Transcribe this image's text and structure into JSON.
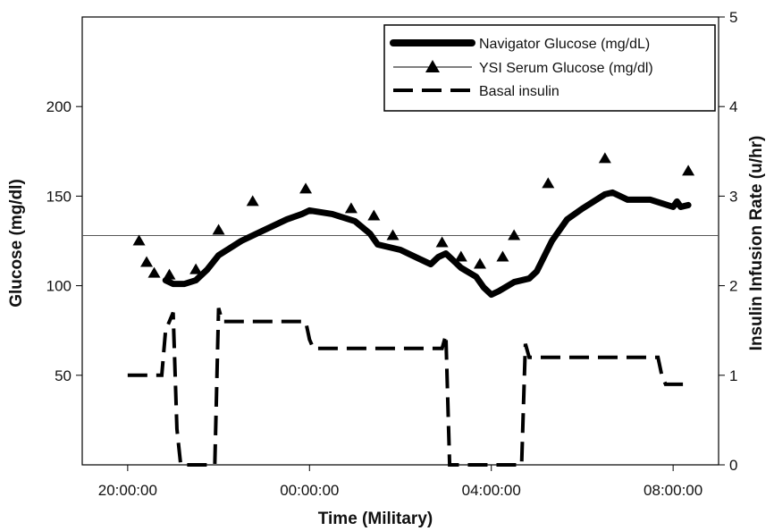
{
  "chart_data": {
    "type": "line",
    "x_axis": {
      "label": "Time (Military)",
      "range": [
        "19:00:00",
        "09:00:00"
      ],
      "ticks": [
        "20:00:00",
        "00:00:00",
        "04:00:00",
        "08:00:00"
      ]
    },
    "y_axis_left": {
      "label": "Glucose (mg/dl)",
      "range": [
        0,
        250
      ],
      "ticks": [
        "50",
        "100",
        "150",
        "200"
      ]
    },
    "y_axis_right": {
      "label": "Insulin Infusion Rate (u/hr)",
      "range": [
        0,
        5
      ],
      "ticks": [
        "0",
        "1",
        "2",
        "3",
        "4",
        "5"
      ]
    },
    "reference_line": {
      "y": 128,
      "color": "#555555"
    },
    "legend": {
      "placement": "top-right",
      "entries": [
        "Navigator Glucose (mg/dL)",
        "YSI Serum Glucose (mg/dl)",
        "Basal insulin"
      ]
    },
    "series": [
      {
        "name": "Navigator Glucose (mg/dL)",
        "axis": "left",
        "style": "thick-solid",
        "x": [
          "20:50",
          "21:00",
          "21:15",
          "21:30",
          "21:45",
          "22:00",
          "22:30",
          "23:00",
          "23:30",
          "23:50",
          "00:00",
          "00:30",
          "01:00",
          "01:20",
          "01:30",
          "02:00",
          "02:20",
          "02:40",
          "02:50",
          "03:00",
          "03:20",
          "03:40",
          "03:50",
          "04:00",
          "04:10",
          "04:30",
          "04:50",
          "05:00",
          "05:20",
          "05:40",
          "06:00",
          "06:30",
          "06:40",
          "07:00",
          "07:30",
          "07:45",
          "08:00",
          "08:05",
          "08:10",
          "08:20"
        ],
        "y": [
          103,
          101,
          101,
          103,
          109,
          117,
          125,
          131,
          137,
          140,
          142,
          140,
          136,
          129,
          123,
          120,
          116,
          112,
          116,
          118,
          110,
          105,
          99,
          95,
          97,
          102,
          104,
          108,
          125,
          137,
          143,
          151,
          152,
          148,
          148,
          146,
          144,
          147,
          144,
          145
        ]
      },
      {
        "name": "YSI Serum Glucose (mg/dl)",
        "axis": "left",
        "style": "triangle-markers",
        "x": [
          "20:15",
          "20:25",
          "20:35",
          "20:55",
          "21:30",
          "22:00",
          "22:45",
          "23:55",
          "00:55",
          "01:25",
          "01:50",
          "02:55",
          "03:20",
          "03:45",
          "04:15",
          "04:30",
          "05:15",
          "06:30",
          "08:20"
        ],
        "y": [
          125,
          113,
          107,
          106,
          109,
          131,
          147,
          154,
          143,
          139,
          128,
          124,
          116,
          112,
          116,
          128,
          157,
          171,
          164
        ]
      },
      {
        "name": "Basal insulin",
        "axis": "right",
        "style": "dashed",
        "x": [
          "20:00",
          "20:45",
          "20:50",
          "21:00",
          "21:05",
          "21:10",
          "21:55",
          "22:00",
          "22:05",
          "23:55",
          "24:00",
          "24:05",
          "26:55",
          "27:00",
          "27:05",
          "28:40",
          "28:45",
          "28:50",
          "31:40",
          "31:45",
          "31:50",
          "32:20"
        ],
        "y": [
          1.0,
          1.0,
          1.5,
          1.7,
          0.4,
          0.0,
          0.0,
          1.75,
          1.6,
          1.6,
          1.4,
          1.3,
          1.3,
          1.45,
          0.0,
          0.0,
          1.35,
          1.2,
          1.2,
          1.0,
          0.9,
          0.9
        ]
      }
    ]
  }
}
